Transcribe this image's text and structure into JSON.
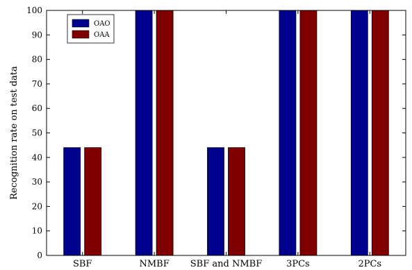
{
  "chart_data": {
    "type": "bar",
    "categories": [
      "SBF",
      "NMBF",
      "SBF and NMBF",
      "3PCs",
      "2PCs"
    ],
    "series": [
      {
        "name": "OAO",
        "values": [
          44,
          100,
          44,
          100,
          100
        ],
        "color": "#00008f"
      },
      {
        "name": "OAA",
        "values": [
          44,
          100,
          44,
          100,
          100
        ],
        "color": "#800000"
      }
    ],
    "title": "",
    "xlabel": "",
    "ylabel": "Recognition rate on test data",
    "ylim": [
      0,
      100
    ],
    "yticks": [
      0,
      10,
      20,
      30,
      40,
      50,
      60,
      70,
      80,
      90,
      100
    ],
    "grid": false,
    "legend_position": "top-left"
  }
}
